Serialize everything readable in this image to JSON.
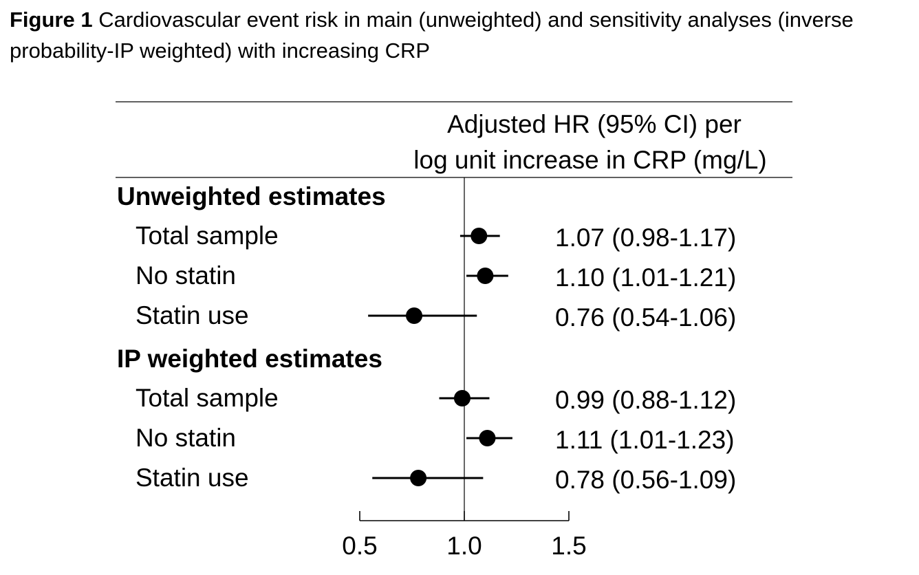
{
  "caption": {
    "label": "Figure 1",
    "text": "Cardiovascular event risk in main (unweighted) and sensitivity analyses (inverse probability-IP weighted) with increasing CRP"
  },
  "column_header": {
    "line1": "Adjusted HR (95% CI) per",
    "line2": "log unit increase in CRP (mg/L)"
  },
  "chart_data": {
    "type": "forest",
    "x_axis": {
      "ticks": [
        0.5,
        1.0,
        1.5
      ],
      "tick_labels": [
        "0.5",
        "1.0",
        "1.5"
      ],
      "range": [
        0.5,
        1.5
      ],
      "reference_line": 1.0
    },
    "groups": [
      {
        "label": "Unweighted estimates",
        "rows": [
          {
            "label": "Total sample",
            "hr": 1.07,
            "lo": 0.98,
            "hi": 1.17,
            "text": "1.07 (0.98-1.17)"
          },
          {
            "label": "No statin",
            "hr": 1.1,
            "lo": 1.01,
            "hi": 1.21,
            "text": "1.10 (1.01-1.21)"
          },
          {
            "label": "Statin use",
            "hr": 0.76,
            "lo": 0.54,
            "hi": 1.06,
            "text": "0.76 (0.54-1.06)"
          }
        ]
      },
      {
        "label": "IP weighted estimates",
        "rows": [
          {
            "label": "Total sample",
            "hr": 0.99,
            "lo": 0.88,
            "hi": 1.12,
            "text": "0.99 (0.88-1.12)"
          },
          {
            "label": "No statin",
            "hr": 1.11,
            "lo": 1.01,
            "hi": 1.23,
            "text": "1.11 (1.01-1.23)"
          },
          {
            "label": "Statin use",
            "hr": 0.78,
            "lo": 0.56,
            "hi": 1.09,
            "text": "0.78 (0.56-1.09)"
          }
        ]
      }
    ]
  }
}
